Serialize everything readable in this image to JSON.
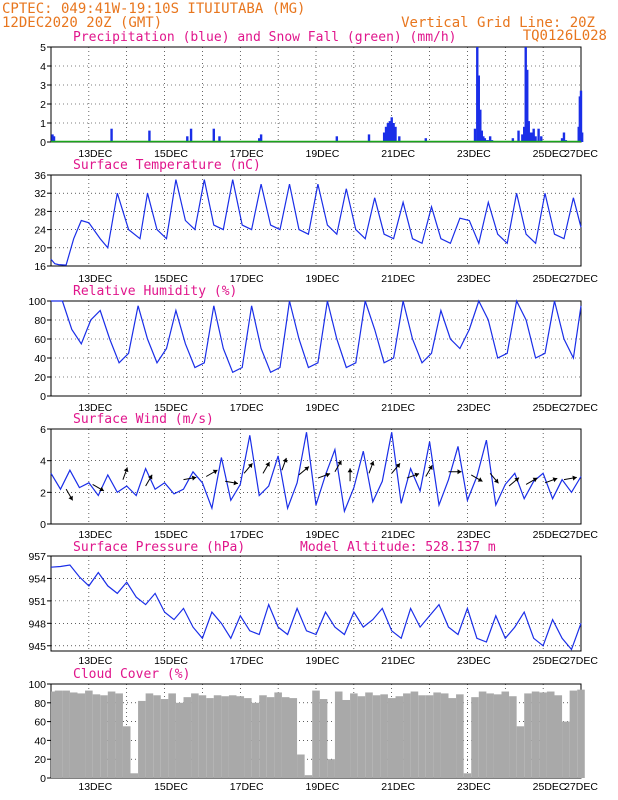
{
  "header": {
    "line1": "CPTEC:   049:41W-19:10S   ITUIUTABA (MG)",
    "line2": "12DEC2020 20Z (GMT)",
    "grid_note": "Vertical Grid Line: 20Z",
    "code": "TQ0126L028"
  },
  "x_ticks": [
    "13DEC",
    "15DEC",
    "17DEC",
    "19DEC",
    "21DEC",
    "23DEC",
    "25DEC",
    "27DEC"
  ],
  "colors": {
    "series": "#1a2ee8",
    "snow": "#1aa51a",
    "cloud": "#a9a9a9",
    "title": "#e0168c",
    "header": "#e8761e"
  },
  "chart_data": [
    {
      "id": "precip",
      "type": "bar",
      "title": "Precipitation (blue) and Snow Fall (green) (mm/h)",
      "ylim": [
        0,
        5
      ],
      "yticks": [
        "0",
        "1",
        "2",
        "3",
        "4",
        "5"
      ],
      "x_unit": "days since 12DEC 20Z",
      "series": [
        {
          "name": "Precipitation",
          "x": [
            0.04,
            0.08,
            1.6,
            2.6,
            3.6,
            3.7,
            4.3,
            4.45,
            5.5,
            5.55,
            7.55,
            8.4,
            8.8,
            8.85,
            8.9,
            8.95,
            9.0,
            9.05,
            9.1,
            9.2,
            9.9,
            11.2,
            11.26,
            11.3,
            11.34,
            11.38,
            11.42,
            11.46,
            11.5,
            11.55,
            11.6,
            11.65,
            12.2,
            12.35,
            12.45,
            12.5,
            12.54,
            12.58,
            12.62,
            12.66,
            12.7,
            12.75,
            12.8,
            12.88,
            12.95,
            13.5,
            13.55,
            13.6,
            13.94,
            13.97,
            14.0,
            14.03
          ],
          "values": [
            0.4,
            0.3,
            0.7,
            0.6,
            0.3,
            0.7,
            0.7,
            0.3,
            0.2,
            0.4,
            0.3,
            0.4,
            0.5,
            0.8,
            1.0,
            1.1,
            1.3,
            1.0,
            0.8,
            0.3,
            0.2,
            0.7,
            5.0,
            3.5,
            1.7,
            0.6,
            0.3,
            0.2,
            0.1,
            0.1,
            0.3,
            0.1,
            0.2,
            0.6,
            0.4,
            0.8,
            5.0,
            3.8,
            1.1,
            0.5,
            0.5,
            0.7,
            0.3,
            0.7,
            0.3,
            0.2,
            0.5,
            0.1,
            0.8,
            2.4,
            2.7,
            0.5
          ]
        },
        {
          "name": "Snow Fall",
          "values": [
            0
          ]
        }
      ]
    },
    {
      "id": "temp",
      "type": "line",
      "title": "Surface Temperature (nC)",
      "ylim": [
        16,
        36
      ],
      "yticks": [
        "16",
        "20",
        "24",
        "28",
        "32",
        "36"
      ],
      "x_unit": "days since 12DEC 20Z",
      "x": [
        0,
        0.1,
        0.2,
        0.4,
        0.6,
        0.8,
        1.0,
        1.3,
        1.5,
        1.75,
        2.05,
        2.35,
        2.55,
        2.8,
        3.05,
        3.3,
        3.55,
        3.8,
        4.05,
        4.3,
        4.55,
        4.8,
        5.05,
        5.3,
        5.55,
        5.8,
        6.05,
        6.3,
        6.55,
        6.8,
        7.05,
        7.3,
        7.55,
        7.8,
        8.05,
        8.3,
        8.55,
        8.8,
        9.05,
        9.3,
        9.55,
        9.8,
        10.05,
        10.3,
        10.55,
        10.8,
        11.05,
        11.3,
        11.55,
        11.8,
        12.05,
        12.3,
        12.55,
        12.8,
        13.05,
        13.3,
        13.55,
        13.8,
        14.0
      ],
      "values": [
        17.5,
        16.5,
        16.3,
        16.2,
        22,
        26,
        25.5,
        22,
        20,
        32,
        24,
        22,
        32,
        24,
        22,
        35,
        26,
        24,
        35,
        25,
        24,
        35,
        25,
        24,
        34,
        25,
        24,
        34,
        24,
        23,
        34,
        25,
        23,
        33,
        24,
        22,
        31,
        23,
        22,
        30,
        22,
        21,
        29,
        22,
        21,
        26.5,
        26,
        21,
        30,
        23,
        21,
        32,
        23,
        21,
        32,
        23,
        22,
        31,
        24.5
      ]
    },
    {
      "id": "rh",
      "type": "line",
      "title": "Relative Humidity (%)",
      "ylim": [
        0,
        100
      ],
      "yticks": [
        "0",
        "20",
        "40",
        "60",
        "80",
        "100"
      ],
      "x_unit": "days since 12DEC 20Z",
      "x": [
        0,
        0.3,
        0.55,
        0.8,
        1.05,
        1.3,
        1.55,
        1.8,
        2.05,
        2.3,
        2.55,
        2.8,
        3.05,
        3.3,
        3.55,
        3.8,
        4.05,
        4.3,
        4.55,
        4.8,
        5.05,
        5.3,
        5.55,
        5.8,
        6.05,
        6.3,
        6.55,
        6.8,
        7.05,
        7.3,
        7.55,
        7.8,
        8.05,
        8.3,
        8.55,
        8.8,
        9.05,
        9.3,
        9.55,
        9.8,
        10.05,
        10.3,
        10.55,
        10.8,
        11.05,
        11.3,
        11.55,
        11.8,
        12.05,
        12.3,
        12.55,
        12.8,
        13.05,
        13.3,
        13.55,
        13.8,
        14.0
      ],
      "values": [
        100,
        100,
        70,
        55,
        80,
        90,
        60,
        35,
        45,
        95,
        60,
        35,
        50,
        90,
        55,
        30,
        35,
        95,
        50,
        25,
        30,
        95,
        50,
        25,
        30,
        100,
        60,
        30,
        35,
        100,
        60,
        30,
        35,
        100,
        70,
        35,
        40,
        100,
        60,
        35,
        45,
        90,
        60,
        50,
        70,
        100,
        80,
        40,
        45,
        100,
        80,
        40,
        45,
        100,
        60,
        40,
        95
      ]
    },
    {
      "id": "wind",
      "type": "line",
      "title": "Surface Wind (m/s)",
      "ylim": [
        0,
        6
      ],
      "yticks": [
        "0",
        "2",
        "4",
        "6"
      ],
      "x_unit": "days since 12DEC 20Z",
      "x": [
        0,
        0.25,
        0.5,
        0.75,
        1.0,
        1.25,
        1.5,
        1.75,
        2.0,
        2.25,
        2.5,
        2.75,
        3.0,
        3.25,
        3.5,
        3.75,
        4.0,
        4.25,
        4.5,
        4.75,
        5.0,
        5.25,
        5.5,
        5.75,
        6.0,
        6.25,
        6.5,
        6.75,
        7.0,
        7.25,
        7.5,
        7.75,
        8.0,
        8.25,
        8.5,
        8.75,
        9.0,
        9.25,
        9.5,
        9.75,
        10.0,
        10.25,
        10.5,
        10.75,
        11.0,
        11.25,
        11.5,
        11.75,
        12.0,
        12.25,
        12.5,
        12.75,
        13.0,
        13.25,
        13.5,
        13.75,
        14.0
      ],
      "values": [
        3.2,
        2.2,
        3.4,
        2.3,
        2.6,
        1.8,
        3.1,
        2.0,
        2.4,
        1.8,
        3.5,
        2.2,
        2.6,
        1.9,
        2.2,
        3.3,
        2.6,
        1.0,
        4.2,
        1.5,
        2.5,
        5.6,
        1.8,
        2.4,
        4.3,
        1.0,
        2.6,
        5.8,
        1.2,
        3.1,
        4.7,
        0.8,
        2.3,
        4.6,
        1.4,
        2.7,
        5.8,
        1.3,
        3.5,
        2.1,
        5.2,
        1.2,
        2.8,
        4.9,
        1.5,
        3.0,
        5.3,
        1.2,
        2.5,
        3.2,
        1.6,
        2.7,
        3.2,
        1.6,
        2.8,
        2.0,
        3.0
      ],
      "arrows": {
        "x": [
          0.4,
          1.1,
          1.9,
          2.5,
          3.5,
          4.1,
          4.6,
          5.1,
          5.6,
          6.1,
          6.55,
          7.05,
          7.5,
          7.9,
          8.4,
          9.0,
          9.4,
          9.9,
          10.5,
          11.1,
          11.6,
          12.1,
          12.55,
          13.05,
          13.55
        ],
        "speed": [
          2.2,
          2.5,
          2.8,
          2.4,
          2.8,
          3.0,
          2.7,
          3.2,
          3.2,
          3.4,
          3.1,
          2.9,
          3.3,
          2.7,
          3.2,
          3.2,
          2.9,
          3.0,
          3.3,
          3.1,
          3.2,
          2.4,
          2.5,
          2.6,
          2.8
        ],
        "dir_from_deg": [
          330,
          300,
          200,
          210,
          260,
          240,
          280,
          220,
          210,
          200,
          230,
          250,
          210,
          180,
          200,
          220,
          250,
          210,
          270,
          300,
          320,
          230,
          240,
          250,
          260
        ]
      }
    },
    {
      "id": "pressure",
      "type": "line",
      "title": "Surface Pressure (hPa)",
      "model_altitude": "Model Altitude: 528.137 m",
      "ylim": [
        944.3,
        957
      ],
      "yticks": [
        "945",
        "948",
        "951",
        "954",
        "957"
      ],
      "x_unit": "days since 12DEC 20Z",
      "x": [
        0,
        0.25,
        0.5,
        0.75,
        1.0,
        1.25,
        1.5,
        1.75,
        2.0,
        2.25,
        2.5,
        2.75,
        3.0,
        3.25,
        3.5,
        3.75,
        4.0,
        4.25,
        4.5,
        4.75,
        5.0,
        5.25,
        5.5,
        5.75,
        6.0,
        6.25,
        6.5,
        6.75,
        7.0,
        7.25,
        7.5,
        7.75,
        8.0,
        8.25,
        8.5,
        8.75,
        9.0,
        9.25,
        9.5,
        9.75,
        10.0,
        10.25,
        10.5,
        10.75,
        11.0,
        11.25,
        11.5,
        11.75,
        12.0,
        12.25,
        12.5,
        12.75,
        13.0,
        13.25,
        13.5,
        13.75,
        14.0
      ],
      "values": [
        955.5,
        955.6,
        955.8,
        954.2,
        953.0,
        954.8,
        953.0,
        952.0,
        953.5,
        951.5,
        950.5,
        952.0,
        949.5,
        948.5,
        950.0,
        947.5,
        946.0,
        949.5,
        948.0,
        946.0,
        949.0,
        947.0,
        946.5,
        950.5,
        947.5,
        946.5,
        950.0,
        947.0,
        946.5,
        949.5,
        947.5,
        946.5,
        949.5,
        947.5,
        948.5,
        950.0,
        947.0,
        946.0,
        950.0,
        947.5,
        949.0,
        950.5,
        947.5,
        946.5,
        950.0,
        946.0,
        945.5,
        949.0,
        946.0,
        947.5,
        949.5,
        946.0,
        945.0,
        948.5,
        946.0,
        944.5,
        948.0
      ]
    },
    {
      "id": "cloud",
      "type": "bar",
      "title": "Cloud Cover (%)",
      "ylim": [
        0,
        100
      ],
      "yticks": [
        "0",
        "20",
        "40",
        "60",
        "80",
        "100"
      ],
      "x_unit": "days since 12DEC 20Z",
      "x": [
        0,
        0.2,
        0.4,
        0.6,
        0.8,
        1.0,
        1.2,
        1.4,
        1.6,
        1.8,
        2.0,
        2.2,
        2.4,
        2.6,
        2.8,
        3.0,
        3.2,
        3.4,
        3.6,
        3.8,
        4.0,
        4.2,
        4.4,
        4.6,
        4.8,
        5.0,
        5.2,
        5.4,
        5.6,
        5.8,
        6.0,
        6.2,
        6.4,
        6.6,
        6.8,
        7.0,
        7.2,
        7.4,
        7.6,
        7.8,
        8.0,
        8.2,
        8.4,
        8.6,
        8.8,
        9.0,
        9.2,
        9.4,
        9.6,
        9.8,
        10.0,
        10.2,
        10.4,
        10.6,
        10.8,
        11.0,
        11.2,
        11.4,
        11.6,
        11.8,
        12.0,
        12.2,
        12.4,
        12.6,
        12.8,
        13.0,
        13.2,
        13.4,
        13.6,
        13.8,
        14.0
      ],
      "values": [
        92,
        93,
        93,
        91,
        90,
        93,
        89,
        88,
        92,
        90,
        55,
        5,
        82,
        90,
        88,
        84,
        90,
        80,
        86,
        90,
        88,
        85,
        88,
        87,
        88,
        87,
        85,
        80,
        88,
        86,
        91,
        86,
        85,
        25,
        3,
        93,
        84,
        20,
        92,
        83,
        90,
        87,
        91,
        88,
        89,
        85,
        87,
        90,
        92,
        88,
        88,
        91,
        90,
        85,
        89,
        5,
        86,
        92,
        90,
        89,
        92,
        87,
        55,
        90,
        92,
        91,
        92,
        88,
        60,
        93,
        94
      ]
    }
  ]
}
